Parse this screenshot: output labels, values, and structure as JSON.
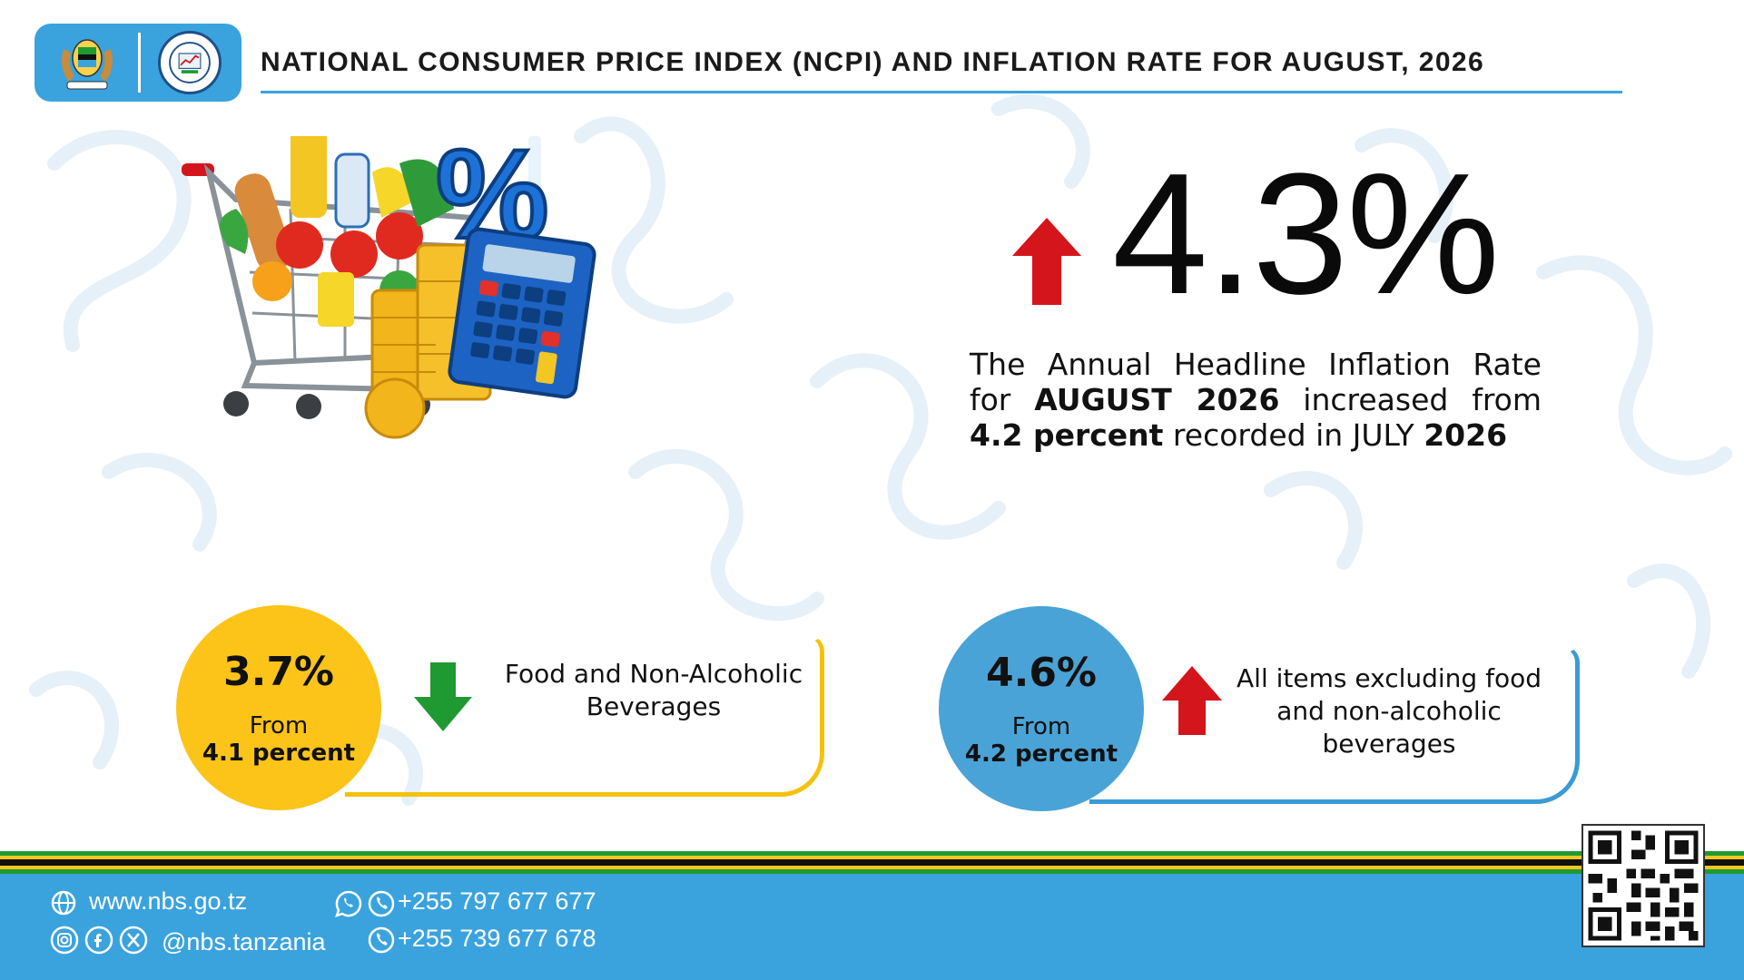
{
  "header": {
    "title": "NATIONAL CONSUMER PRICE INDEX (NCPI) AND INFLATION RATE FOR AUGUST, 2026",
    "colors": {
      "accent": "#3aa3dd"
    }
  },
  "headline": {
    "rate": "4.3%",
    "direction": "up",
    "desc_part1": "The Annual Headline Inflation Rate for ",
    "desc_month": "AUGUST 2026",
    "desc_part2": " increased from ",
    "desc_prev": "4.2 percent",
    "desc_part3": " recorded in JULY ",
    "desc_year": "2026"
  },
  "cards": {
    "food": {
      "rate": "3.7%",
      "from_label": "From",
      "prev_value": "4.1 percent",
      "direction": "down",
      "label": "Food and Non-Alcoholic Beverages",
      "color": "#fcc419",
      "arrow_color": "#1f9a32"
    },
    "nonfood": {
      "rate": "4.6%",
      "from_label": "From",
      "prev_value": "4.2 percent",
      "direction": "up",
      "label": "All items excluding food and non-alcoholic beverages",
      "color": "#4aa3d6",
      "arrow_color": "#d4151c"
    }
  },
  "footer": {
    "website": "www.nbs.go.tz",
    "social_handle": "@nbs.tanzania",
    "phone1": "+255 797 677 677",
    "phone2": "+255 739 677 678",
    "icons": [
      "globe-icon",
      "instagram-icon",
      "facebook-icon",
      "x-icon",
      "whatsapp-icon",
      "phone-icon"
    ]
  }
}
